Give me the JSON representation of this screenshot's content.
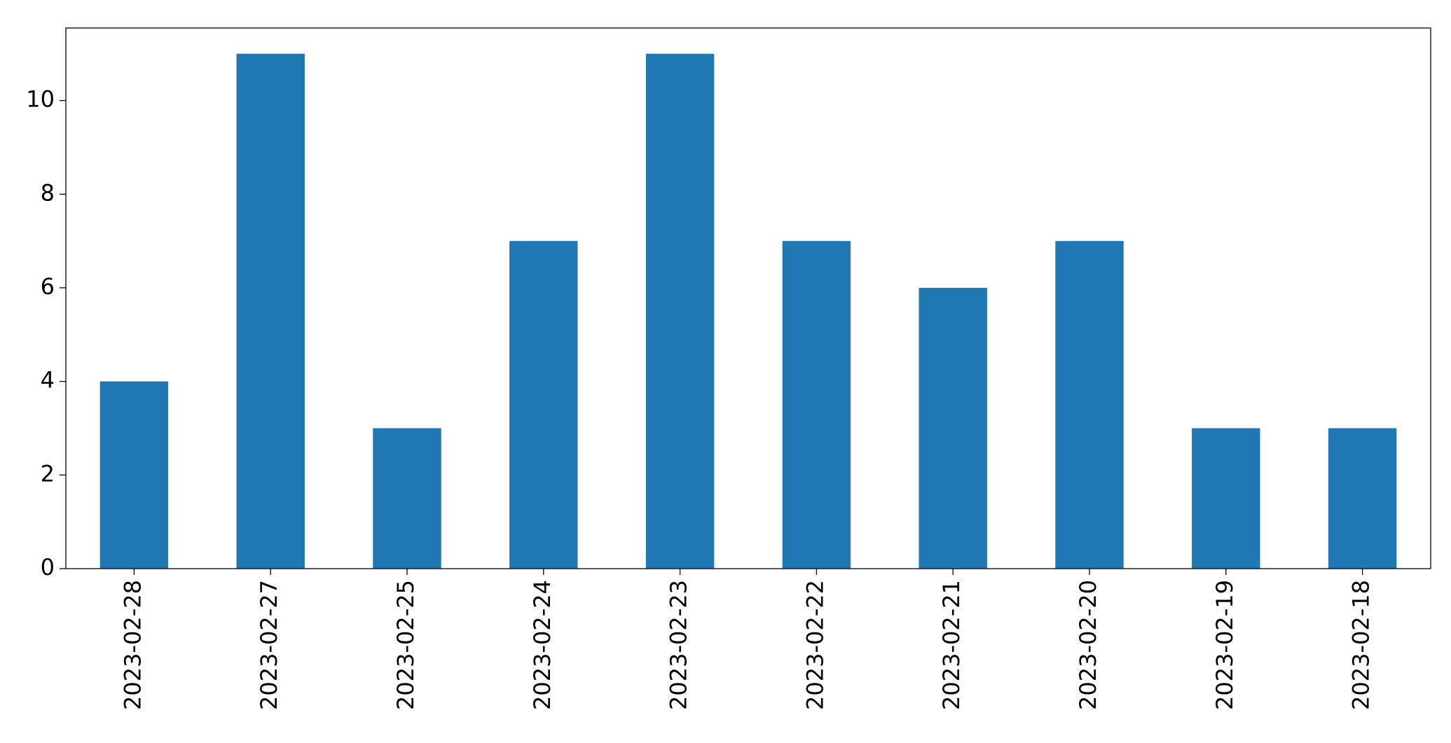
{
  "chart_data": {
    "type": "bar",
    "categories": [
      "2023-02-28",
      "2023-02-27",
      "2023-02-25",
      "2023-02-24",
      "2023-02-23",
      "2023-02-22",
      "2023-02-21",
      "2023-02-20",
      "2023-02-19",
      "2023-02-18"
    ],
    "values": [
      4,
      11,
      3,
      7,
      11,
      7,
      6,
      7,
      3,
      3
    ],
    "color": "#1f77b4",
    "ylim": [
      0,
      11.55
    ],
    "yticks": [
      0,
      2,
      4,
      6,
      8,
      10
    ],
    "grid": false
  }
}
